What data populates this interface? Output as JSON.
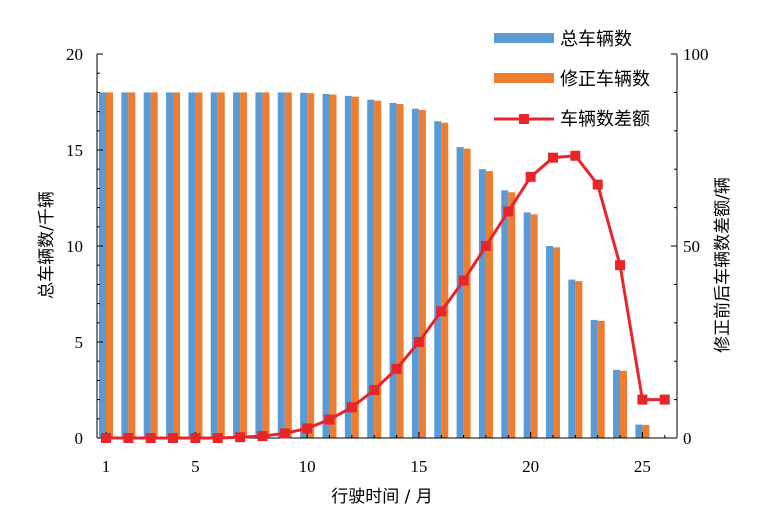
{
  "chart_data": {
    "type": "bar",
    "x": [
      1,
      2,
      3,
      4,
      5,
      6,
      7,
      8,
      9,
      10,
      11,
      12,
      13,
      14,
      15,
      16,
      17,
      18,
      19,
      20,
      21,
      22,
      23,
      24,
      25,
      26
    ],
    "xlabel": "行驶时间 / 月",
    "ylabel": "总车辆数/千辆",
    "y2label": "修正前后车辆数差额/辆",
    "ylim": [
      0,
      20
    ],
    "y2lim": [
      0,
      100
    ],
    "xticks": [
      "1",
      "5",
      "10",
      "15",
      "20",
      "25"
    ],
    "yticks": [
      "0",
      "5",
      "10",
      "15",
      "20"
    ],
    "y2ticks": [
      "0",
      "50",
      "100"
    ],
    "grid": false,
    "legend_position": "top-right",
    "series": [
      {
        "name": "总车辆数",
        "kind": "bar",
        "axis": "left",
        "color": "#5B9BD5",
        "values": [
          18.0,
          18.0,
          18.0,
          18.0,
          18.0,
          18.0,
          18.0,
          18.0,
          18.0,
          17.98,
          17.92,
          17.82,
          17.62,
          17.45,
          17.15,
          16.5,
          15.15,
          14.0,
          12.9,
          11.75,
          10.0,
          8.25,
          6.15,
          3.55,
          0.7,
          0
        ]
      },
      {
        "name": "修正车辆数",
        "kind": "bar",
        "axis": "left",
        "color": "#ED7D31",
        "values": [
          18.0,
          18.0,
          18.0,
          18.0,
          18.0,
          18.0,
          18.0,
          18.0,
          18.0,
          17.96,
          17.89,
          17.78,
          17.57,
          17.39,
          17.08,
          16.42,
          15.07,
          13.9,
          12.8,
          11.65,
          9.93,
          8.17,
          6.1,
          3.5,
          0.68,
          0
        ]
      },
      {
        "name": "车辆数差额",
        "kind": "line",
        "axis": "right",
        "color": "#E8262A",
        "x": [
          1,
          2,
          3,
          4,
          5,
          6,
          7,
          8,
          9,
          10,
          11,
          12,
          13,
          14,
          15,
          16,
          17,
          18,
          19,
          20,
          21,
          22,
          23,
          24,
          25,
          26
        ],
        "values": [
          0,
          0,
          0,
          0,
          0,
          0,
          0.2,
          0.5,
          1.2,
          2.5,
          4.8,
          8,
          12.5,
          18,
          25,
          33,
          41,
          50,
          59,
          68,
          73,
          73.5,
          66,
          45,
          10,
          10
        ]
      }
    ]
  }
}
